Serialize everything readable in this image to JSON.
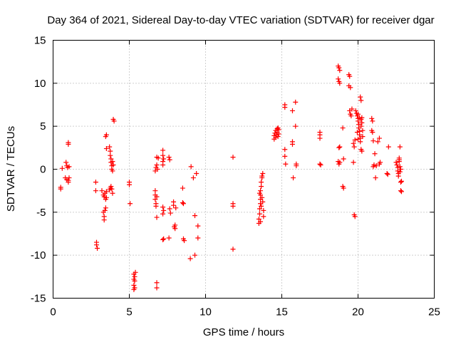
{
  "chart_data": {
    "type": "scatter",
    "title": "Day 364 of 2021, Sidereal Day-to-day VTEC variation (SDTVAR) for receiver dgar",
    "xlabel": "GPS time / hours",
    "ylabel": "SDTVAR / TECUs",
    "xlim": [
      0,
      25
    ],
    "ylim": [
      -15,
      15
    ],
    "xticks": [
      0,
      5,
      10,
      15,
      20,
      25
    ],
    "yticks": [
      -15,
      -10,
      -5,
      0,
      5,
      10,
      15
    ],
    "grid": true,
    "marker": "plus",
    "color": "#ff0000",
    "series": [
      {
        "name": "SDTVAR",
        "points": [
          [
            0.5,
            -2.1
          ],
          [
            0.5,
            -2.3
          ],
          [
            0.6,
            0.1
          ],
          [
            0.8,
            -1.0
          ],
          [
            0.85,
            0.8
          ],
          [
            0.9,
            -1.2
          ],
          [
            0.9,
            0.4
          ],
          [
            0.95,
            0.2
          ],
          [
            1.0,
            -1.5
          ],
          [
            1.0,
            -1.3
          ],
          [
            1.0,
            2.9
          ],
          [
            1.0,
            3.1
          ],
          [
            1.05,
            -1.0
          ],
          [
            1.05,
            0.3
          ],
          [
            2.8,
            -1.5
          ],
          [
            2.8,
            -2.5
          ],
          [
            2.85,
            -8.5
          ],
          [
            2.85,
            -8.8
          ],
          [
            2.9,
            -9.2
          ],
          [
            3.2,
            -2.5
          ],
          [
            3.3,
            -3.0
          ],
          [
            3.35,
            -3.2
          ],
          [
            3.4,
            -2.8
          ],
          [
            3.3,
            -5.0
          ],
          [
            3.35,
            -5.5
          ],
          [
            3.35,
            -5.9
          ],
          [
            3.4,
            -4.8
          ],
          [
            3.45,
            -4.5
          ],
          [
            3.45,
            -3.5
          ],
          [
            3.5,
            -2.6
          ],
          [
            3.5,
            -3.3
          ],
          [
            3.5,
            2.4
          ],
          [
            3.45,
            3.8
          ],
          [
            3.5,
            4.0
          ],
          [
            3.7,
            -2.4
          ],
          [
            3.75,
            -2.2
          ],
          [
            3.8,
            -2.0
          ],
          [
            3.85,
            -2.3
          ],
          [
            3.9,
            -2.8
          ],
          [
            3.7,
            2.6
          ],
          [
            3.75,
            2.1
          ],
          [
            3.75,
            1.6
          ],
          [
            3.8,
            1.2
          ],
          [
            3.8,
            0.8
          ],
          [
            3.85,
            0.4
          ],
          [
            3.85,
            0.0
          ],
          [
            3.9,
            -0.2
          ],
          [
            3.9,
            0.9
          ],
          [
            3.95,
            0.5
          ],
          [
            3.95,
            5.8
          ],
          [
            4.0,
            5.6
          ],
          [
            5.0,
            -1.5
          ],
          [
            5.0,
            -1.8
          ],
          [
            5.05,
            -4.0
          ],
          [
            5.3,
            -12.2
          ],
          [
            5.3,
            -12.8
          ],
          [
            5.3,
            -13.5
          ],
          [
            5.3,
            -14.0
          ],
          [
            5.35,
            -13.0
          ],
          [
            5.35,
            -12.5
          ],
          [
            5.35,
            -13.8
          ],
          [
            5.4,
            -12.0
          ],
          [
            6.7,
            -2.5
          ],
          [
            6.7,
            -3.0
          ],
          [
            6.7,
            -3.5
          ],
          [
            6.75,
            -4.0
          ],
          [
            6.75,
            -4.3
          ],
          [
            6.8,
            -3.2
          ],
          [
            6.8,
            -5.6
          ],
          [
            6.8,
            -13.2
          ],
          [
            6.8,
            -13.8
          ],
          [
            6.7,
            -0.2
          ],
          [
            6.75,
            0.2
          ],
          [
            6.8,
            0.5
          ],
          [
            6.8,
            1.4
          ],
          [
            6.85,
            0.0
          ],
          [
            6.9,
            1.3
          ],
          [
            7.2,
            -8.2
          ],
          [
            7.25,
            -8.1
          ],
          [
            7.2,
            -4.4
          ],
          [
            7.25,
            -4.8
          ],
          [
            7.2,
            -5.2
          ],
          [
            7.2,
            0.5
          ],
          [
            7.2,
            0.9
          ],
          [
            7.2,
            1.6
          ],
          [
            7.2,
            2.2
          ],
          [
            7.25,
            1.2
          ],
          [
            7.6,
            -8.0
          ],
          [
            7.65,
            -4.6
          ],
          [
            7.7,
            -5.1
          ],
          [
            7.6,
            1.4
          ],
          [
            7.65,
            1.1
          ],
          [
            7.9,
            -3.8
          ],
          [
            7.9,
            -4.2
          ],
          [
            7.95,
            -6.7
          ],
          [
            8.0,
            -6.5
          ],
          [
            8.0,
            -6.9
          ],
          [
            8.05,
            -4.5
          ],
          [
            8.5,
            -2.2
          ],
          [
            8.5,
            -3.9
          ],
          [
            8.55,
            -4.0
          ],
          [
            8.55,
            -8.1
          ],
          [
            8.6,
            -8.3
          ],
          [
            9.0,
            -10.4
          ],
          [
            9.05,
            0.3
          ],
          [
            9.2,
            -1.0
          ],
          [
            9.3,
            -5.4
          ],
          [
            9.3,
            -10.0
          ],
          [
            9.4,
            -0.5
          ],
          [
            9.5,
            -6.6
          ],
          [
            9.5,
            -8.0
          ],
          [
            11.8,
            1.4
          ],
          [
            11.8,
            -4.0
          ],
          [
            11.8,
            -4.3
          ],
          [
            11.8,
            -9.3
          ],
          [
            13.5,
            -6.3
          ],
          [
            13.5,
            -5.8
          ],
          [
            13.55,
            -5.2
          ],
          [
            13.55,
            -4.6
          ],
          [
            13.6,
            -4.0
          ],
          [
            13.6,
            -3.5
          ],
          [
            13.6,
            -3.0
          ],
          [
            13.6,
            -2.5
          ],
          [
            13.65,
            -2.0
          ],
          [
            13.65,
            -1.5
          ],
          [
            13.7,
            -1.0
          ],
          [
            13.7,
            -0.8
          ],
          [
            13.75,
            -0.5
          ],
          [
            13.75,
            -3.8
          ],
          [
            13.8,
            -4.8
          ],
          [
            13.8,
            -5.5
          ],
          [
            13.6,
            -6.1
          ],
          [
            13.7,
            -3.3
          ],
          [
            13.65,
            -4.3
          ],
          [
            13.55,
            -2.8
          ],
          [
            14.5,
            3.5
          ],
          [
            14.5,
            3.9
          ],
          [
            14.55,
            4.2
          ],
          [
            14.6,
            4.5
          ],
          [
            14.6,
            3.7
          ],
          [
            14.65,
            4.0
          ],
          [
            14.7,
            4.3
          ],
          [
            14.7,
            4.7
          ],
          [
            14.75,
            3.8
          ],
          [
            14.8,
            4.1
          ],
          [
            14.8,
            4.6
          ],
          [
            14.75,
            4.8
          ],
          [
            15.2,
            7.2
          ],
          [
            15.2,
            7.5
          ],
          [
            15.2,
            2.3
          ],
          [
            15.2,
            1.5
          ],
          [
            15.25,
            0.6
          ],
          [
            15.7,
            6.8
          ],
          [
            15.7,
            3.2
          ],
          [
            15.7,
            2.9
          ],
          [
            15.75,
            -1.0
          ],
          [
            15.9,
            7.8
          ],
          [
            15.9,
            5.0
          ],
          [
            15.95,
            0.6
          ],
          [
            15.95,
            0.4
          ],
          [
            17.5,
            4.3
          ],
          [
            17.5,
            4.0
          ],
          [
            17.5,
            3.6
          ],
          [
            17.5,
            0.6
          ],
          [
            17.55,
            0.5
          ],
          [
            18.7,
            12.0
          ],
          [
            18.75,
            11.8
          ],
          [
            18.8,
            11.5
          ],
          [
            18.7,
            10.5
          ],
          [
            18.75,
            10.2
          ],
          [
            18.8,
            10.0
          ],
          [
            18.75,
            2.5
          ],
          [
            18.8,
            2.6
          ],
          [
            18.7,
            0.9
          ],
          [
            18.8,
            0.8
          ],
          [
            18.75,
            0.6
          ],
          [
            19.0,
            4.8
          ],
          [
            19.05,
            1.2
          ],
          [
            19.0,
            -2.0
          ],
          [
            19.05,
            -2.2
          ],
          [
            19.4,
            11.0
          ],
          [
            19.45,
            10.8
          ],
          [
            19.4,
            9.7
          ],
          [
            19.5,
            9.5
          ],
          [
            19.45,
            6.8
          ],
          [
            19.5,
            6.4
          ],
          [
            19.55,
            6.2
          ],
          [
            19.6,
            7.0
          ],
          [
            19.7,
            3.0
          ],
          [
            19.75,
            2.6
          ],
          [
            19.7,
            0.8
          ],
          [
            19.75,
            -5.3
          ],
          [
            19.8,
            -5.5
          ],
          [
            19.8,
            3.4
          ],
          [
            19.85,
            6.8
          ],
          [
            19.9,
            6.5
          ],
          [
            19.95,
            6.2
          ],
          [
            20.0,
            5.9
          ],
          [
            20.0,
            5.6
          ],
          [
            20.05,
            5.2
          ],
          [
            20.05,
            4.8
          ],
          [
            20.1,
            4.4
          ],
          [
            20.1,
            4.0
          ],
          [
            20.15,
            3.6
          ],
          [
            20.15,
            3.2
          ],
          [
            20.2,
            5.0
          ],
          [
            20.2,
            5.8
          ],
          [
            20.25,
            6.0
          ],
          [
            20.0,
            6.4
          ],
          [
            20.1,
            6.0
          ],
          [
            20.15,
            8.4
          ],
          [
            20.2,
            8.0
          ],
          [
            20.2,
            2.3
          ],
          [
            20.25,
            2.1
          ],
          [
            20.3,
            4.5
          ],
          [
            20.3,
            3.8
          ],
          [
            20.25,
            5.4
          ],
          [
            20.0,
            3.5
          ],
          [
            19.95,
            4.3
          ],
          [
            20.9,
            5.9
          ],
          [
            20.95,
            5.6
          ],
          [
            20.9,
            4.5
          ],
          [
            20.95,
            4.3
          ],
          [
            21.0,
            3.3
          ],
          [
            21.05,
            0.5
          ],
          [
            21.0,
            0.3
          ],
          [
            21.1,
            1.8
          ],
          [
            21.15,
            -1.0
          ],
          [
            21.2,
            0.4
          ],
          [
            21.3,
            3.2
          ],
          [
            21.4,
            3.6
          ],
          [
            21.45,
            0.8
          ],
          [
            21.4,
            0.6
          ],
          [
            21.9,
            -0.5
          ],
          [
            21.95,
            -0.6
          ],
          [
            22.0,
            2.6
          ],
          [
            22.5,
            0.8
          ],
          [
            22.55,
            0.5
          ],
          [
            22.6,
            0.2
          ],
          [
            22.6,
            -0.2
          ],
          [
            22.65,
            -0.5
          ],
          [
            22.65,
            -0.8
          ],
          [
            22.7,
            0.9
          ],
          [
            22.7,
            1.1
          ],
          [
            22.75,
            0.3
          ],
          [
            22.75,
            -0.3
          ],
          [
            22.8,
            0.0
          ],
          [
            22.8,
            -1.5
          ],
          [
            22.8,
            -2.5
          ],
          [
            22.85,
            -2.6
          ],
          [
            22.85,
            -1.4
          ],
          [
            22.75,
            2.6
          ],
          [
            22.7,
            1.3
          ]
        ]
      }
    ]
  }
}
